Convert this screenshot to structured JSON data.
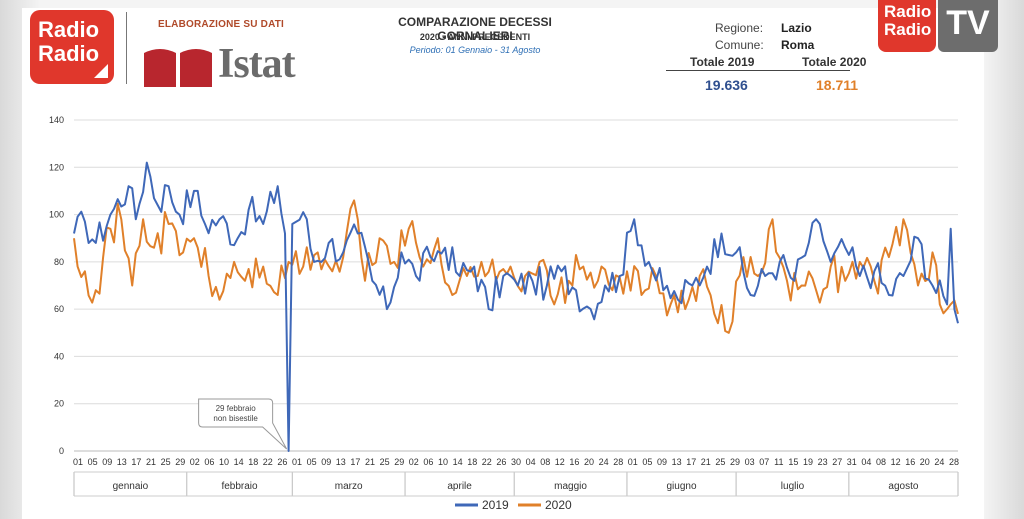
{
  "header": {
    "elaborazione": "ELABORAZIONE SU DATI",
    "brand_top": "Radio",
    "brand_bottom": "Radio",
    "istat_label": "Istat",
    "title": "COMPARAZIONE DECESSI GORNALIERI",
    "subtitle": "2020 - ANNI PRECEDENTI",
    "period": "Periodo: 01 Gennaio - 31 Agosto",
    "regione_label": "Regione:",
    "regione_value": "Lazio",
    "comune_label": "Comune:",
    "comune_value": "Roma",
    "totale_2019_label": "Totale 2019",
    "totale_2020_label": "Totale 2020",
    "totale_2019_value": "19.636",
    "totale_2020_value": "18.711",
    "tv_badge_top": "Radio",
    "tv_badge_bottom": "Radio",
    "tv_label": "TV"
  },
  "colors": {
    "series_2019": "#3f68b8",
    "series_2020": "#e0802a",
    "total_2019": "#2f4f8f",
    "total_2020": "#e0802a",
    "grid": "#dcdcdc"
  },
  "chart_data": {
    "type": "line",
    "ylim": [
      0,
      140
    ],
    "yticks": [
      0,
      20,
      40,
      60,
      80,
      100,
      120,
      140
    ],
    "day_count": 244,
    "months": [
      "gennaio",
      "febbraio",
      "marzo",
      "aprile",
      "maggio",
      "giugno",
      "luglio",
      "agosto"
    ],
    "month_days": [
      31,
      29,
      31,
      30,
      31,
      30,
      31,
      31
    ],
    "tick_labels": [
      "01",
      "05",
      "09",
      "13",
      "17",
      "21",
      "25",
      "29",
      "02",
      "06",
      "10",
      "14",
      "18",
      "22",
      "26",
      "01",
      "05",
      "09",
      "13",
      "17",
      "21",
      "25",
      "29",
      "02",
      "06",
      "10",
      "14",
      "18",
      "22",
      "26",
      "30",
      "04",
      "08",
      "12",
      "16",
      "20",
      "24",
      "28",
      "01",
      "05",
      "09",
      "13",
      "17",
      "21",
      "25",
      "29",
      "03",
      "07",
      "11",
      "15",
      "19",
      "23",
      "27",
      "31",
      "04",
      "08",
      "12",
      "16",
      "20",
      "24",
      "28"
    ],
    "annotation": {
      "text_line1": "29 febbraio",
      "text_line2": "non bisestile",
      "day_index": 59,
      "value": 0
    },
    "series": [
      {
        "name": "2019",
        "anchors": [
          [
            0,
            92
          ],
          [
            3,
            97
          ],
          [
            6,
            88
          ],
          [
            10,
            100
          ],
          [
            15,
            112
          ],
          [
            17,
            98
          ],
          [
            20,
            122
          ],
          [
            23,
            104
          ],
          [
            26,
            112
          ],
          [
            29,
            100
          ],
          [
            33,
            110
          ],
          [
            36,
            96
          ],
          [
            40,
            98
          ],
          [
            45,
            90
          ],
          [
            48,
            102
          ],
          [
            52,
            96
          ],
          [
            56,
            112
          ],
          [
            58,
            92
          ],
          [
            59,
            0
          ],
          [
            60,
            96
          ],
          [
            63,
            101
          ],
          [
            66,
            80
          ],
          [
            70,
            88
          ],
          [
            74,
            84
          ],
          [
            78,
            92
          ],
          [
            82,
            72
          ],
          [
            86,
            60
          ],
          [
            90,
            84
          ],
          [
            94,
            74
          ],
          [
            98,
            82
          ],
          [
            102,
            86
          ],
          [
            106,
            74
          ],
          [
            110,
            78
          ],
          [
            114,
            60
          ],
          [
            118,
            74
          ],
          [
            122,
            70
          ],
          [
            126,
            72
          ],
          [
            130,
            70
          ],
          [
            134,
            76
          ],
          [
            138,
            68
          ],
          [
            142,
            60
          ],
          [
            146,
            70
          ],
          [
            150,
            74
          ],
          [
            154,
            98
          ],
          [
            158,
            80
          ],
          [
            162,
            68
          ],
          [
            166,
            64
          ],
          [
            170,
            70
          ],
          [
            174,
            78
          ],
          [
            178,
            92
          ],
          [
            182,
            84
          ],
          [
            186,
            66
          ],
          [
            190,
            74
          ],
          [
            194,
            80
          ],
          [
            198,
            72
          ],
          [
            202,
            88
          ],
          [
            205,
            96
          ],
          [
            208,
            80
          ],
          [
            212,
            86
          ],
          [
            216,
            74
          ],
          [
            220,
            76
          ],
          [
            224,
            66
          ],
          [
            228,
            74
          ],
          [
            232,
            90
          ],
          [
            236,
            70
          ],
          [
            240,
            62
          ],
          [
            241,
            94
          ],
          [
            242,
            60
          ],
          [
            243,
            54
          ]
        ]
      },
      {
        "name": "2020",
        "anchors": [
          [
            0,
            90
          ],
          [
            3,
            76
          ],
          [
            6,
            68
          ],
          [
            10,
            94
          ],
          [
            13,
            98
          ],
          [
            16,
            70
          ],
          [
            19,
            98
          ],
          [
            22,
            86
          ],
          [
            26,
            96
          ],
          [
            30,
            84
          ],
          [
            33,
            90
          ],
          [
            37,
            74
          ],
          [
            40,
            64
          ],
          [
            44,
            80
          ],
          [
            47,
            72
          ],
          [
            52,
            78
          ],
          [
            56,
            66
          ],
          [
            59,
            80
          ],
          [
            63,
            78
          ],
          [
            67,
            84
          ],
          [
            71,
            76
          ],
          [
            74,
            82
          ],
          [
            77,
            106
          ],
          [
            80,
            72
          ],
          [
            84,
            90
          ],
          [
            88,
            80
          ],
          [
            92,
            94
          ],
          [
            96,
            78
          ],
          [
            100,
            90
          ],
          [
            104,
            66
          ],
          [
            108,
            74
          ],
          [
            112,
            80
          ],
          [
            116,
            72
          ],
          [
            120,
            78
          ],
          [
            124,
            74
          ],
          [
            128,
            80
          ],
          [
            132,
            62
          ],
          [
            136,
            72
          ],
          [
            140,
            78
          ],
          [
            144,
            72
          ],
          [
            148,
            68
          ],
          [
            152,
            76
          ],
          [
            156,
            66
          ],
          [
            160,
            74
          ],
          [
            164,
            62
          ],
          [
            168,
            60
          ],
          [
            172,
            74
          ],
          [
            176,
            58
          ],
          [
            180,
            50
          ],
          [
            184,
            82
          ],
          [
            188,
            74
          ],
          [
            192,
            98
          ],
          [
            196,
            72
          ],
          [
            200,
            70
          ],
          [
            204,
            68
          ],
          [
            208,
            78
          ],
          [
            212,
            72
          ],
          [
            216,
            80
          ],
          [
            220,
            72
          ],
          [
            224,
            82
          ],
          [
            228,
            98
          ],
          [
            232,
            70
          ],
          [
            236,
            84
          ],
          [
            238,
            62
          ],
          [
            240,
            60
          ],
          [
            243,
            58
          ]
        ]
      }
    ]
  },
  "legend": {
    "label_2019": "2019",
    "label_2020": "2020"
  }
}
